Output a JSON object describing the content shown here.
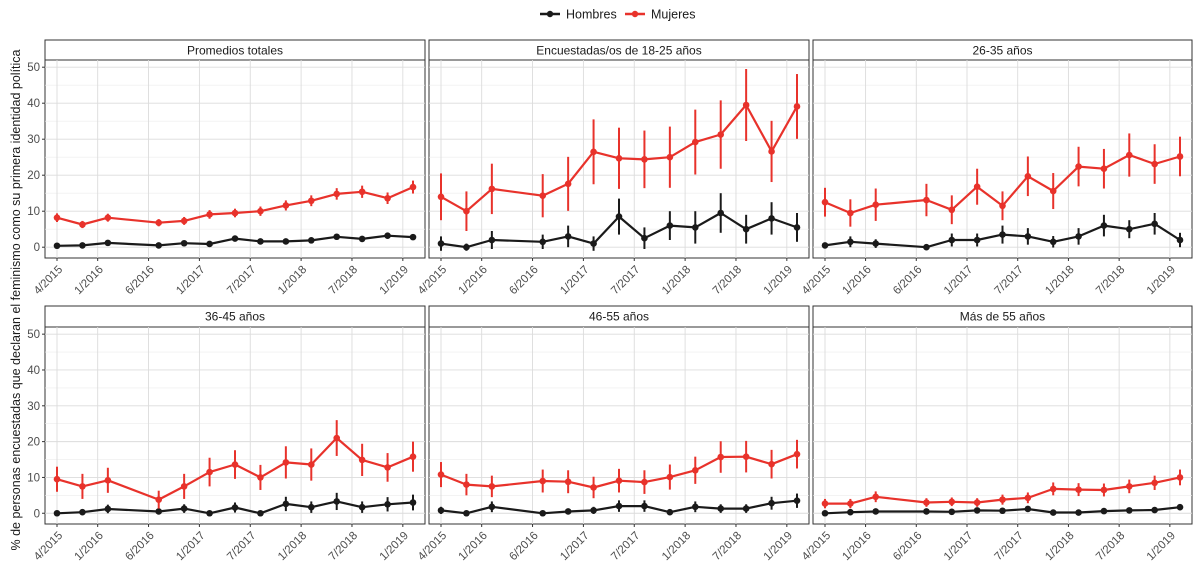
{
  "legend": {
    "items": [
      {
        "label": "Hombres",
        "color": "#1a1a1a"
      },
      {
        "label": "Mujeres",
        "color": "#e8322b"
      }
    ],
    "placement": "top-center"
  },
  "ylabel": "% de personas encuestadas que declaran el feminismo como su primera identidad política",
  "chart_data": {
    "type": "line",
    "y_ticks": [
      0,
      10,
      20,
      30,
      40,
      50
    ],
    "ylim": [
      -3,
      52
    ],
    "grid": true,
    "x_index": [
      0,
      1,
      2,
      4,
      5,
      6,
      7,
      8,
      9,
      10,
      11,
      12,
      13,
      14
    ],
    "x_tick_labels": [
      "4/2015",
      "1/2016",
      "6/2016",
      "1/2017",
      "7/2017",
      "1/2018",
      "7/2018",
      "1/2019"
    ],
    "x_tick_index": [
      0,
      1.6,
      3.6,
      5.6,
      7.6,
      9.6,
      11.6,
      13.6
    ],
    "panels": [
      {
        "title": "Promedios totales",
        "series": [
          {
            "name": "Hombres",
            "values": [
              0.4,
              0.5,
              1.2,
              0.5,
              1.1,
              0.9,
              2.4,
              1.6,
              1.6,
              1.9,
              2.9,
              2.3,
              3.2,
              2.8
            ],
            "err": [
              0.3,
              0.3,
              0.3,
              0.3,
              0.3,
              0.3,
              0.5,
              0.4,
              0.4,
              0.4,
              0.5,
              0.4,
              0.5,
              0.5
            ]
          },
          {
            "name": "Mujeres",
            "values": [
              8.2,
              6.3,
              8.2,
              6.8,
              7.3,
              9.1,
              9.5,
              10.0,
              11.6,
              12.9,
              14.8,
              15.4,
              13.6,
              16.7
            ],
            "err": [
              1.2,
              1.0,
              1.1,
              1.0,
              1.1,
              1.2,
              1.2,
              1.3,
              1.4,
              1.5,
              1.6,
              1.7,
              1.6,
              1.8
            ]
          }
        ]
      },
      {
        "title": "Encuestadas/os de 18-25 años",
        "series": [
          {
            "name": "Hombres",
            "values": [
              1.0,
              0.0,
              2.0,
              1.5,
              3.0,
              1.0,
              8.5,
              2.5,
              6.0,
              5.5,
              9.5,
              5.0,
              8.0,
              5.5
            ],
            "err": [
              2.0,
              1.0,
              2.5,
              2.0,
              3.0,
              2.0,
              5.0,
              3.0,
              4.0,
              4.5,
              5.5,
              4.0,
              4.5,
              4.0
            ]
          },
          {
            "name": "Mujeres",
            "values": [
              14.0,
              10.0,
              16.2,
              14.3,
              17.6,
              26.5,
              24.7,
              24.4,
              25.0,
              29.2,
              31.3,
              39.5,
              26.6,
              39.1
            ],
            "err": [
              6.5,
              5.5,
              7.0,
              6.0,
              7.5,
              9.0,
              8.5,
              8.0,
              8.5,
              9.0,
              9.5,
              10.0,
              8.5,
              9.0
            ]
          }
        ]
      },
      {
        "title": "26-35 años",
        "series": [
          {
            "name": "Hombres",
            "values": [
              0.5,
              1.5,
              1.0,
              0.0,
              2.0,
              2.0,
              3.5,
              3.0,
              1.5,
              3.0,
              6.0,
              5.0,
              6.5,
              2.0
            ],
            "err": [
              0.5,
              1.5,
              1.2,
              0.5,
              1.8,
              1.8,
              2.5,
              2.3,
              1.6,
              2.3,
              3.0,
              2.5,
              3.0,
              2.0
            ]
          },
          {
            "name": "Mujeres",
            "values": [
              12.5,
              9.5,
              11.8,
              13.1,
              10.4,
              16.8,
              11.5,
              19.7,
              15.6,
              22.4,
              21.8,
              25.6,
              23.1,
              25.2
            ],
            "err": [
              4.0,
              3.8,
              4.5,
              4.5,
              4.0,
              5.0,
              4.0,
              5.5,
              5.0,
              5.5,
              5.5,
              6.0,
              5.5,
              5.5
            ]
          }
        ]
      },
      {
        "title": "36-45 años",
        "series": [
          {
            "name": "Hombres",
            "values": [
              0.0,
              0.3,
              1.2,
              0.5,
              1.3,
              0.0,
              1.6,
              0.0,
              2.6,
              1.7,
              3.3,
              1.7,
              2.5,
              3.0
            ],
            "err": [
              0.3,
              0.5,
              1.2,
              0.6,
              1.2,
              0.4,
              1.4,
              0.4,
              2.0,
              1.6,
              2.4,
              1.6,
              2.0,
              2.2
            ]
          },
          {
            "name": "Mujeres",
            "values": [
              9.5,
              7.5,
              9.2,
              3.8,
              7.5,
              11.5,
              13.6,
              10.0,
              14.2,
              13.6,
              21.0,
              14.9,
              12.8,
              15.8
            ],
            "err": [
              3.5,
              3.5,
              3.5,
              2.5,
              3.5,
              4.0,
              4.0,
              3.5,
              4.5,
              4.5,
              5.0,
              4.5,
              4.0,
              4.2
            ]
          }
        ]
      },
      {
        "title": "46-55 años",
        "series": [
          {
            "name": "Hombres",
            "values": [
              0.8,
              0.0,
              1.8,
              0.0,
              0.5,
              0.8,
              2.0,
              2.0,
              0.3,
              1.8,
              1.3,
              1.3,
              2.8,
              3.5
            ],
            "err": [
              1.0,
              0.5,
              1.5,
              0.3,
              0.7,
              1.0,
              1.6,
              1.6,
              0.5,
              1.5,
              1.2,
              1.2,
              1.8,
              2.0
            ]
          },
          {
            "name": "Mujeres",
            "values": [
              10.8,
              8.0,
              7.5,
              9.0,
              8.8,
              7.2,
              9.1,
              8.7,
              10.1,
              12.0,
              15.7,
              15.8,
              13.7,
              16.5
            ],
            "err": [
              3.5,
              3.0,
              3.0,
              3.2,
              3.2,
              3.0,
              3.3,
              3.3,
              3.5,
              3.8,
              4.4,
              4.4,
              4.0,
              4.0
            ]
          }
        ]
      },
      {
        "title": "Más de 55 años",
        "series": [
          {
            "name": "Hombres",
            "values": [
              0.0,
              0.3,
              0.5,
              0.5,
              0.4,
              0.8,
              0.7,
              1.2,
              0.2,
              0.2,
              0.6,
              0.8,
              0.9,
              1.7
            ],
            "err": [
              0.2,
              0.3,
              0.4,
              0.4,
              0.4,
              0.5,
              0.5,
              0.6,
              0.3,
              0.3,
              0.5,
              0.5,
              0.5,
              0.7
            ]
          },
          {
            "name": "Mujeres",
            "values": [
              2.7,
              2.7,
              4.6,
              3.0,
              3.2,
              3.0,
              3.8,
              4.3,
              6.8,
              6.6,
              6.5,
              7.5,
              8.5,
              10.0
            ],
            "err": [
              1.3,
              1.3,
              1.5,
              1.2,
              1.2,
              1.2,
              1.4,
              1.5,
              1.8,
              1.8,
              1.8,
              1.9,
              2.0,
              2.2
            ]
          }
        ]
      }
    ]
  }
}
